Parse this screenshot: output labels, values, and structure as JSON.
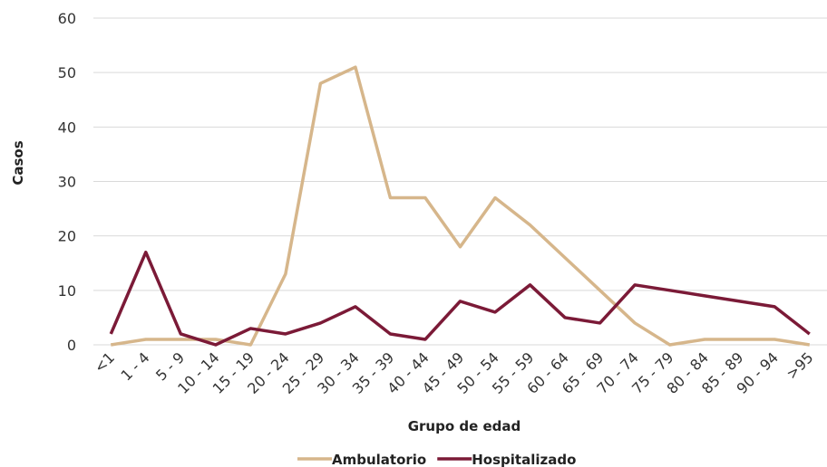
{
  "chart_data": {
    "type": "line",
    "x_label": "Grupo de edad",
    "y_label": "Casos",
    "categories": [
      "<1",
      "1 - 4",
      "5 - 9",
      "10 - 14",
      "15 - 19",
      "20 - 24",
      "25 - 29",
      "30 - 34",
      "35 - 39",
      "40 - 44",
      "45 - 49",
      "50 - 54",
      "55 - 59",
      "60 - 64",
      "65 - 69",
      "70 - 74",
      "75 - 79",
      "80 - 84",
      "85 - 89",
      "90 - 94",
      ">95"
    ],
    "series": [
      {
        "name": "Ambulatorio",
        "color": "#d6b68b",
        "values": [
          0,
          1,
          1,
          1,
          0,
          13,
          48,
          51,
          27,
          27,
          18,
          27,
          22,
          16,
          10,
          4,
          0,
          1,
          1,
          1,
          0
        ]
      },
      {
        "name": "Hospitalizado",
        "color": "#7b1a37",
        "values": [
          2,
          17,
          2,
          0,
          3,
          2,
          4,
          7,
          2,
          1,
          8,
          6,
          11,
          5,
          4,
          11,
          10,
          9,
          8,
          7,
          2
        ]
      }
    ],
    "ylim": [
      0,
      60
    ],
    "yticks": [
      0,
      10,
      20,
      30,
      40,
      50,
      60
    ],
    "grid": true
  }
}
